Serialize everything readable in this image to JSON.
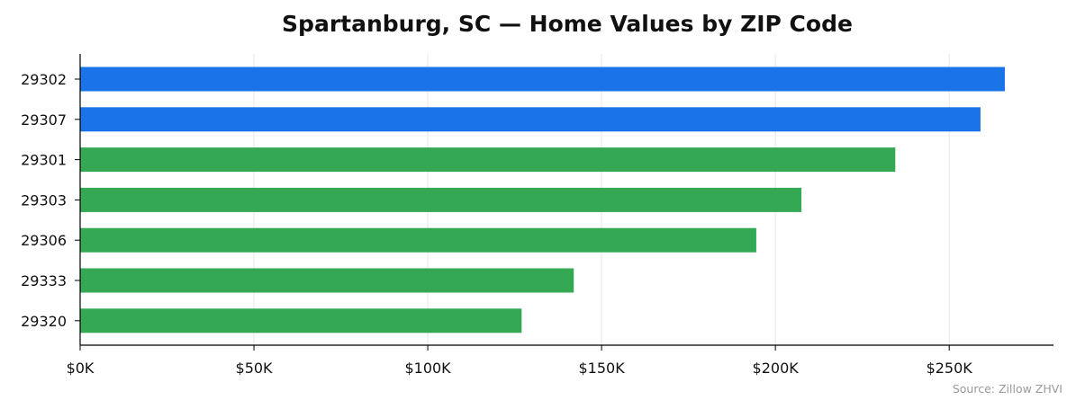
{
  "chart_data": {
    "type": "bar",
    "orientation": "horizontal",
    "title": "Spartanburg, SC — Home Values by ZIP Code",
    "xlabel": "",
    "ylabel": "",
    "categories": [
      "29302",
      "29307",
      "29301",
      "29303",
      "29306",
      "29333",
      "29320"
    ],
    "values": [
      266000,
      259000,
      234500,
      207500,
      194500,
      142000,
      127000
    ],
    "highlight": [
      true,
      true,
      false,
      false,
      false,
      false,
      false
    ],
    "xlim": [
      0,
      280000
    ],
    "xticks": [
      0,
      50000,
      100000,
      150000,
      200000,
      250000
    ],
    "xtick_labels": [
      "$0K",
      "$50K",
      "$100K",
      "$150K",
      "$200K",
      "$250K"
    ],
    "grid": "vertical",
    "legend": "none",
    "source": "Source: Zillow ZHVI",
    "colors": {
      "highlight": "#1a73e8",
      "default": "#34a853",
      "grid": "#e6e6e6",
      "axis": "#000000"
    }
  }
}
